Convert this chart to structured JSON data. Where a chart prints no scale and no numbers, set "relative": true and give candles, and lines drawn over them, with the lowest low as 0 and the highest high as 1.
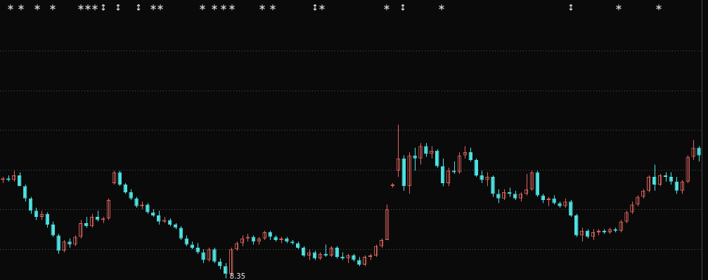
{
  "chart_data": {
    "type": "candlestick",
    "relative": true,
    "grid": true,
    "legend": false,
    "tick_labels": false,
    "categories": [
      null,
      null,
      null,
      null,
      null,
      null,
      null,
      null,
      null,
      null,
      null,
      null,
      null,
      null,
      null,
      null,
      null,
      null,
      null,
      null,
      null,
      null,
      null,
      null,
      null,
      null,
      null,
      null,
      null,
      null,
      null,
      null,
      null,
      null,
      null,
      null,
      null,
      null,
      null,
      null,
      null,
      null,
      null,
      null,
      null,
      null,
      null,
      null,
      null,
      null,
      null,
      null,
      null,
      null,
      null,
      null,
      null,
      null,
      null,
      null,
      null,
      null,
      null,
      null,
      null,
      null,
      null,
      null,
      null,
      null,
      null,
      null,
      null,
      null,
      null,
      null,
      null,
      null,
      null,
      null,
      null,
      null,
      null,
      null,
      null,
      null,
      null,
      null,
      null,
      null,
      null,
      null,
      null,
      null,
      null,
      null,
      null,
      null,
      null,
      null,
      null,
      null,
      null,
      null,
      null,
      null,
      null,
      null,
      null,
      null,
      null,
      null,
      null,
      null,
      null,
      null,
      null,
      null,
      null,
      null,
      null,
      null,
      null,
      null,
      null,
      null
    ],
    "ohlc": [
      [
        0.64,
        0.66,
        0.62,
        0.65
      ],
      [
        0.65,
        0.67,
        0.63,
        0.64
      ],
      [
        0.64,
        0.7,
        0.63,
        0.67
      ],
      [
        0.67,
        0.69,
        0.6,
        0.6
      ],
      [
        0.6,
        0.61,
        0.5,
        0.52
      ],
      [
        0.52,
        0.53,
        0.42,
        0.44
      ],
      [
        0.44,
        0.46,
        0.38,
        0.4
      ],
      [
        0.4,
        0.44,
        0.38,
        0.42
      ],
      [
        0.42,
        0.43,
        0.33,
        0.35
      ],
      [
        0.35,
        0.37,
        0.27,
        0.28
      ],
      [
        0.28,
        0.29,
        0.16,
        0.18
      ],
      [
        0.18,
        0.25,
        0.17,
        0.24
      ],
      [
        0.24,
        0.26,
        0.2,
        0.22
      ],
      [
        0.22,
        0.28,
        0.21,
        0.27
      ],
      [
        0.27,
        0.38,
        0.26,
        0.36
      ],
      [
        0.36,
        0.4,
        0.33,
        0.34
      ],
      [
        0.34,
        0.42,
        0.33,
        0.4
      ],
      [
        0.4,
        0.44,
        0.37,
        0.38
      ],
      [
        0.38,
        0.4,
        0.36,
        0.39
      ],
      [
        0.39,
        0.52,
        0.38,
        0.51
      ],
      [
        0.62,
        0.7,
        0.61,
        0.69
      ],
      [
        0.69,
        0.7,
        0.6,
        0.61
      ],
      [
        0.61,
        0.62,
        0.55,
        0.56
      ],
      [
        0.56,
        0.58,
        0.51,
        0.52
      ],
      [
        0.52,
        0.53,
        0.46,
        0.47
      ],
      [
        0.47,
        0.5,
        0.45,
        0.48
      ],
      [
        0.48,
        0.49,
        0.42,
        0.43
      ],
      [
        0.43,
        0.45,
        0.4,
        0.41
      ],
      [
        0.41,
        0.44,
        0.35,
        0.37
      ],
      [
        0.37,
        0.4,
        0.36,
        0.38
      ],
      [
        0.38,
        0.39,
        0.34,
        0.35
      ],
      [
        0.35,
        0.36,
        0.32,
        0.33
      ],
      [
        0.33,
        0.34,
        0.25,
        0.26
      ],
      [
        0.26,
        0.28,
        0.21,
        0.22
      ],
      [
        0.22,
        0.24,
        0.19,
        0.2
      ],
      [
        0.2,
        0.23,
        0.16,
        0.17
      ],
      [
        0.17,
        0.19,
        0.1,
        0.12
      ],
      [
        0.12,
        0.2,
        0.11,
        0.19
      ],
      [
        0.19,
        0.2,
        0.1,
        0.11
      ],
      [
        0.11,
        0.13,
        0.06,
        0.08
      ],
      [
        0.08,
        0.1,
        0.0,
        0.03
      ],
      [
        0.03,
        0.2,
        0.02,
        0.19
      ],
      [
        0.19,
        0.24,
        0.18,
        0.23
      ],
      [
        0.23,
        0.28,
        0.21,
        0.26
      ],
      [
        0.26,
        0.29,
        0.24,
        0.27
      ],
      [
        0.27,
        0.28,
        0.22,
        0.24
      ],
      [
        0.24,
        0.27,
        0.22,
        0.26
      ],
      [
        0.26,
        0.31,
        0.25,
        0.3
      ],
      [
        0.3,
        0.31,
        0.25,
        0.27
      ],
      [
        0.27,
        0.28,
        0.24,
        0.25
      ],
      [
        0.25,
        0.27,
        0.23,
        0.26
      ],
      [
        0.26,
        0.27,
        0.23,
        0.24
      ],
      [
        0.24,
        0.25,
        0.22,
        0.23
      ],
      [
        0.23,
        0.24,
        0.19,
        0.2
      ],
      [
        0.2,
        0.21,
        0.14,
        0.15
      ],
      [
        0.15,
        0.19,
        0.12,
        0.17
      ],
      [
        0.17,
        0.18,
        0.12,
        0.13
      ],
      [
        0.13,
        0.17,
        0.12,
        0.16
      ],
      [
        0.16,
        0.22,
        0.14,
        0.15
      ],
      [
        0.15,
        0.21,
        0.14,
        0.2
      ],
      [
        0.2,
        0.21,
        0.13,
        0.14
      ],
      [
        0.14,
        0.17,
        0.12,
        0.13
      ],
      [
        0.13,
        0.16,
        0.1,
        0.15
      ],
      [
        0.15,
        0.16,
        0.11,
        0.12
      ],
      [
        0.12,
        0.14,
        0.08,
        0.09
      ],
      [
        0.09,
        0.15,
        0.08,
        0.14
      ],
      [
        0.14,
        0.16,
        0.12,
        0.15
      ],
      [
        0.15,
        0.22,
        0.14,
        0.21
      ],
      [
        0.21,
        0.26,
        0.2,
        0.25
      ],
      [
        0.25,
        0.48,
        0.25,
        0.45
      ],
      [
        0.6,
        0.62,
        0.59,
        0.61
      ],
      [
        0.7,
        1.0,
        0.66,
        0.78
      ],
      [
        0.78,
        0.8,
        0.57,
        0.6
      ],
      [
        0.6,
        0.82,
        0.55,
        0.8
      ],
      [
        0.8,
        0.85,
        0.7,
        0.78
      ],
      [
        0.78,
        0.88,
        0.74,
        0.86
      ],
      [
        0.86,
        0.88,
        0.79,
        0.81
      ],
      [
        0.81,
        0.86,
        0.78,
        0.83
      ],
      [
        0.83,
        0.84,
        0.72,
        0.73
      ],
      [
        0.73,
        0.78,
        0.6,
        0.62
      ],
      [
        0.62,
        0.72,
        0.6,
        0.7
      ],
      [
        0.7,
        0.76,
        0.68,
        0.69
      ],
      [
        0.69,
        0.82,
        0.68,
        0.8
      ],
      [
        0.8,
        0.86,
        0.78,
        0.82
      ],
      [
        0.82,
        0.85,
        0.76,
        0.77
      ],
      [
        0.77,
        0.78,
        0.66,
        0.67
      ],
      [
        0.67,
        0.7,
        0.62,
        0.64
      ],
      [
        0.64,
        0.69,
        0.6,
        0.66
      ],
      [
        0.66,
        0.67,
        0.53,
        0.55
      ],
      [
        0.55,
        0.58,
        0.49,
        0.52
      ],
      [
        0.52,
        0.58,
        0.51,
        0.56
      ],
      [
        0.56,
        0.59,
        0.53,
        0.55
      ],
      [
        0.55,
        0.57,
        0.51,
        0.52
      ],
      [
        0.52,
        0.56,
        0.5,
        0.55
      ],
      [
        0.55,
        0.68,
        0.54,
        0.58
      ],
      [
        0.58,
        0.7,
        0.57,
        0.69
      ],
      [
        0.69,
        0.7,
        0.53,
        0.54
      ],
      [
        0.54,
        0.55,
        0.49,
        0.51
      ],
      [
        0.51,
        0.53,
        0.47,
        0.52
      ],
      [
        0.52,
        0.54,
        0.48,
        0.49
      ],
      [
        0.49,
        0.5,
        0.46,
        0.47
      ],
      [
        0.47,
        0.52,
        0.46,
        0.5
      ],
      [
        0.5,
        0.51,
        0.4,
        0.41
      ],
      [
        0.41,
        0.42,
        0.27,
        0.28
      ],
      [
        0.28,
        0.33,
        0.24,
        0.31
      ],
      [
        0.31,
        0.32,
        0.26,
        0.27
      ],
      [
        0.27,
        0.32,
        0.25,
        0.3
      ],
      [
        0.3,
        0.32,
        0.28,
        0.31
      ],
      [
        0.31,
        0.32,
        0.29,
        0.3
      ],
      [
        0.3,
        0.33,
        0.29,
        0.32
      ],
      [
        0.32,
        0.33,
        0.3,
        0.31
      ],
      [
        0.31,
        0.38,
        0.3,
        0.37
      ],
      [
        0.37,
        0.44,
        0.36,
        0.43
      ],
      [
        0.43,
        0.5,
        0.42,
        0.48
      ],
      [
        0.48,
        0.54,
        0.47,
        0.53
      ],
      [
        0.53,
        0.58,
        0.52,
        0.57
      ],
      [
        0.57,
        0.67,
        0.56,
        0.66
      ],
      [
        0.66,
        0.74,
        0.57,
        0.61
      ],
      [
        0.61,
        0.68,
        0.6,
        0.67
      ],
      [
        0.67,
        0.69,
        0.63,
        0.66
      ],
      [
        0.66,
        0.69,
        0.61,
        0.63
      ],
      [
        0.63,
        0.66,
        0.55,
        0.57
      ],
      [
        0.57,
        0.64,
        0.55,
        0.63
      ],
      [
        0.63,
        0.8,
        0.62,
        0.79
      ],
      [
        0.79,
        0.9,
        0.77,
        0.85
      ],
      [
        0.85,
        0.86,
        0.76,
        0.8
      ]
    ],
    "annotations": [
      "8.35"
    ]
  }
}
